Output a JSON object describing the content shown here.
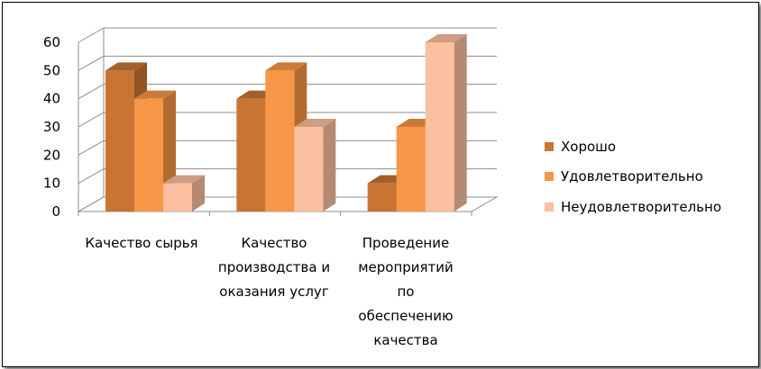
{
  "chart_data": {
    "type": "bar",
    "title": "",
    "xlabel": "",
    "ylabel": "",
    "categories": [
      "Качество сырья",
      "Качество производства и оказания услуг",
      "Проведение мероприятий по обеспечению качества"
    ],
    "category_lines": [
      [
        "Качество сырья"
      ],
      [
        "Качество",
        "производства и",
        "оказания услуг"
      ],
      [
        "Проведение",
        "мероприятий",
        "по",
        "обеспечению",
        "качества"
      ]
    ],
    "series": [
      {
        "name": "Хорошо",
        "values": [
          50,
          40,
          10
        ],
        "color": "#C87533"
      },
      {
        "name": "Удовлетворительно",
        "values": [
          40,
          50,
          30
        ],
        "color": "#F79646"
      },
      {
        "name": "Неудовлетворительно",
        "values": [
          10,
          30,
          60
        ],
        "color": "#FBC09F"
      }
    ],
    "ylim": [
      0,
      60
    ],
    "yticks": [
      0,
      10,
      20,
      30,
      40,
      50,
      60
    ],
    "grid": true,
    "three_d": true,
    "legend_position": "right"
  }
}
